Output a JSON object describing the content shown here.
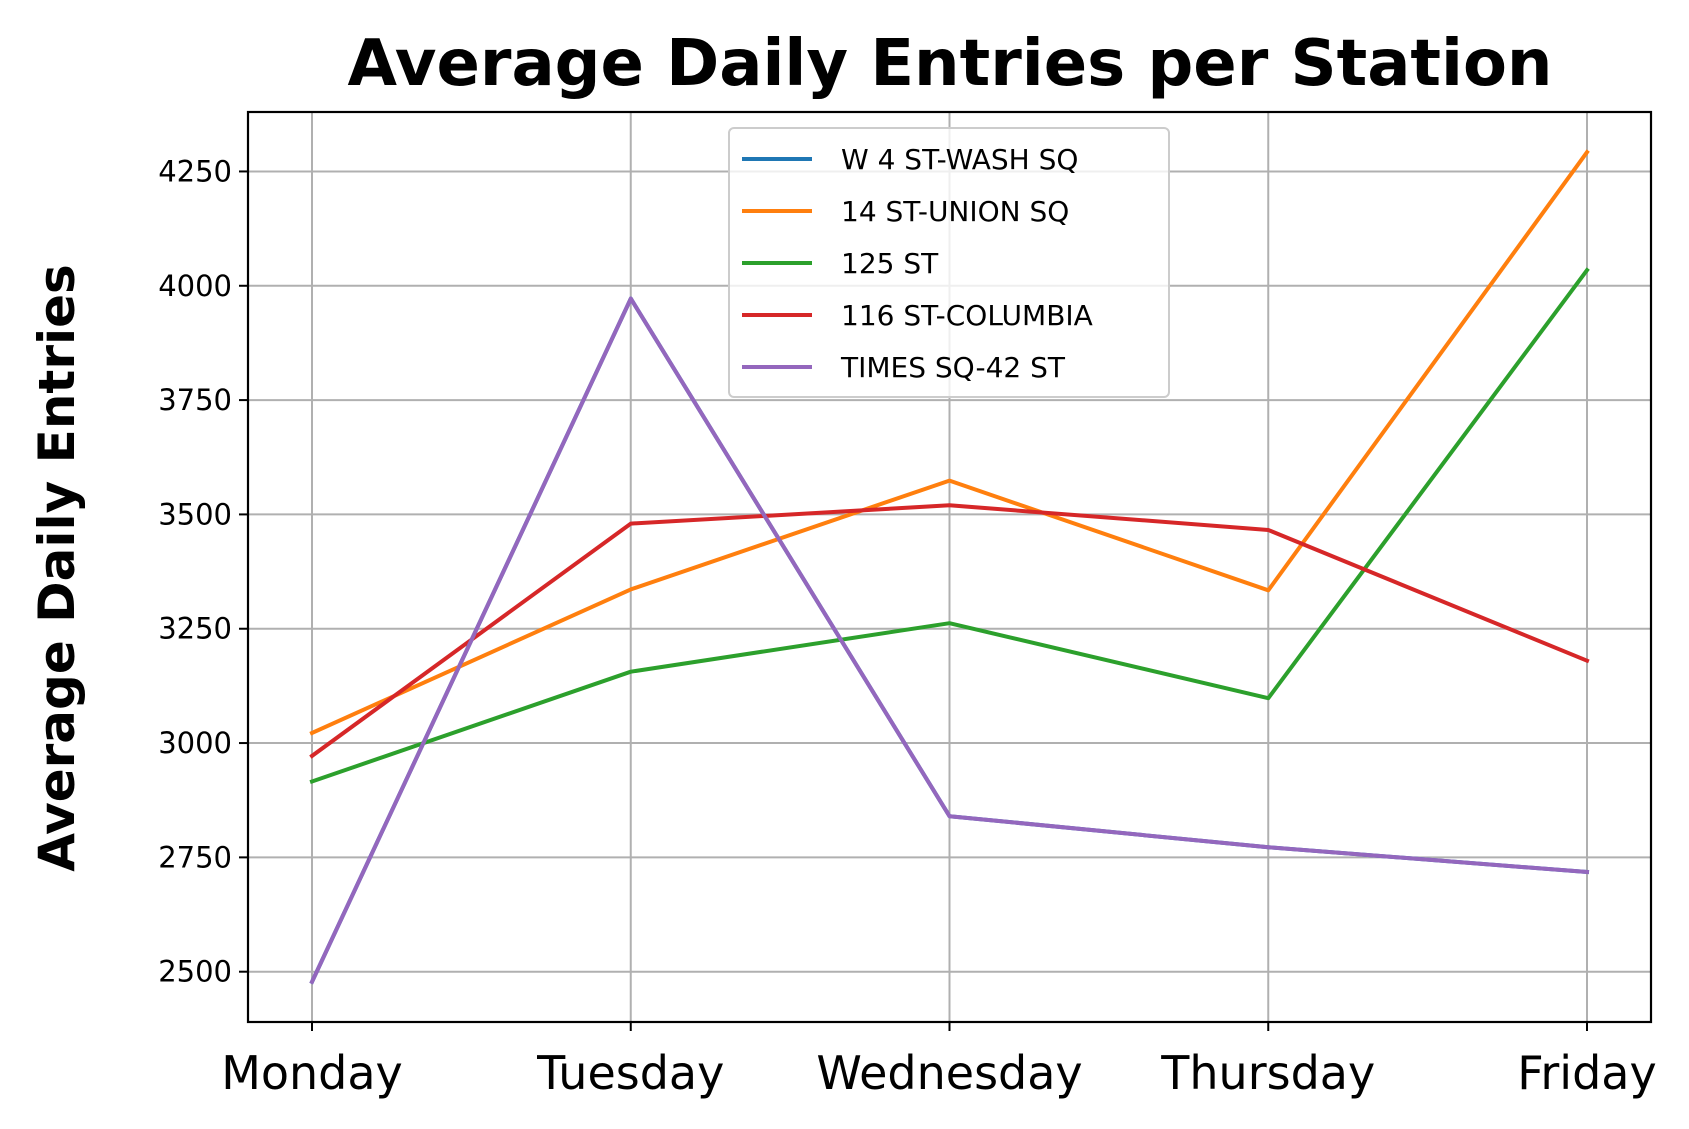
{
  "chart_data": {
    "type": "line",
    "title": "Average Daily Entries per Station",
    "xlabel": "",
    "ylabel": "Average Daily Entries",
    "categories": [
      "Monday",
      "Tuesday",
      "Wednesday",
      "Thursday",
      "Friday"
    ],
    "ylim": [
      2390,
      4380
    ],
    "yticks": [
      2500,
      2750,
      3000,
      3250,
      3500,
      3750,
      4000,
      4250
    ],
    "grid": true,
    "legend_position": "top-center",
    "series": [
      {
        "name": "W 4 ST-WASH SQ",
        "color": "#1f77b4",
        "values": [
          2478,
          3972,
          2840,
          2772,
          2718
        ]
      },
      {
        "name": "14 ST-UNION SQ",
        "color": "#ff7f0e",
        "values": [
          3022,
          3336,
          3574,
          3334,
          4292
        ]
      },
      {
        "name": "125 ST",
        "color": "#2ca02c",
        "values": [
          2916,
          3156,
          3262,
          3098,
          4034
        ]
      },
      {
        "name": "116 ST-COLUMBIA",
        "color": "#d62728",
        "values": [
          2972,
          3480,
          3520,
          3466,
          3180
        ]
      },
      {
        "name": "TIMES SQ-42 ST",
        "color": "#9467bd",
        "values": [
          2478,
          3972,
          2840,
          2772,
          2718
        ]
      }
    ]
  }
}
